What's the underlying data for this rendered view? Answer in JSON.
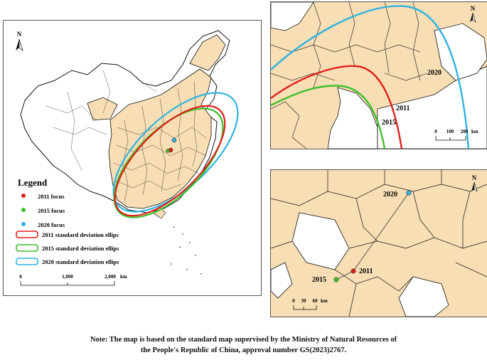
{
  "north_label": "N",
  "legend": {
    "title": "Legend",
    "items": [
      {
        "label": "2011 focus",
        "color": "#e0201b",
        "kind": "point"
      },
      {
        "label": "2015 focus",
        "color": "#3dbf2b",
        "kind": "point"
      },
      {
        "label": "2020 focus",
        "color": "#2fb3e0",
        "kind": "point"
      },
      {
        "label": "2011 standard deviation ellips",
        "color": "#e0201b",
        "kind": "ellipse"
      },
      {
        "label": "2015 standard deviation ellips",
        "color": "#3dbf2b",
        "kind": "ellipse"
      },
      {
        "label": "2020 standard deviation ellips",
        "color": "#2fb3e0",
        "kind": "ellipse"
      }
    ]
  },
  "main_scale": {
    "ticks": [
      "0",
      "1,000",
      "2,000"
    ],
    "unit": "km"
  },
  "inset_top": {
    "year_labels": [
      "2020",
      "2011",
      "2015"
    ],
    "scale": {
      "ticks": [
        "0",
        "100",
        "200"
      ],
      "unit": "km"
    }
  },
  "inset_bottom": {
    "year_labels": [
      "2020",
      "2011",
      "2015"
    ],
    "scale": {
      "ticks": [
        "0",
        "30",
        "60"
      ],
      "unit": "km"
    }
  },
  "colors": {
    "land": "#f8deb4",
    "border": "#111111",
    "frame": "#555555"
  },
  "note": {
    "line1": "Note: The map is based on the standard map supervised by the Ministry of Natural Resources of",
    "line2": "the People's Republic of China, approval number GS(2023)2767."
  }
}
